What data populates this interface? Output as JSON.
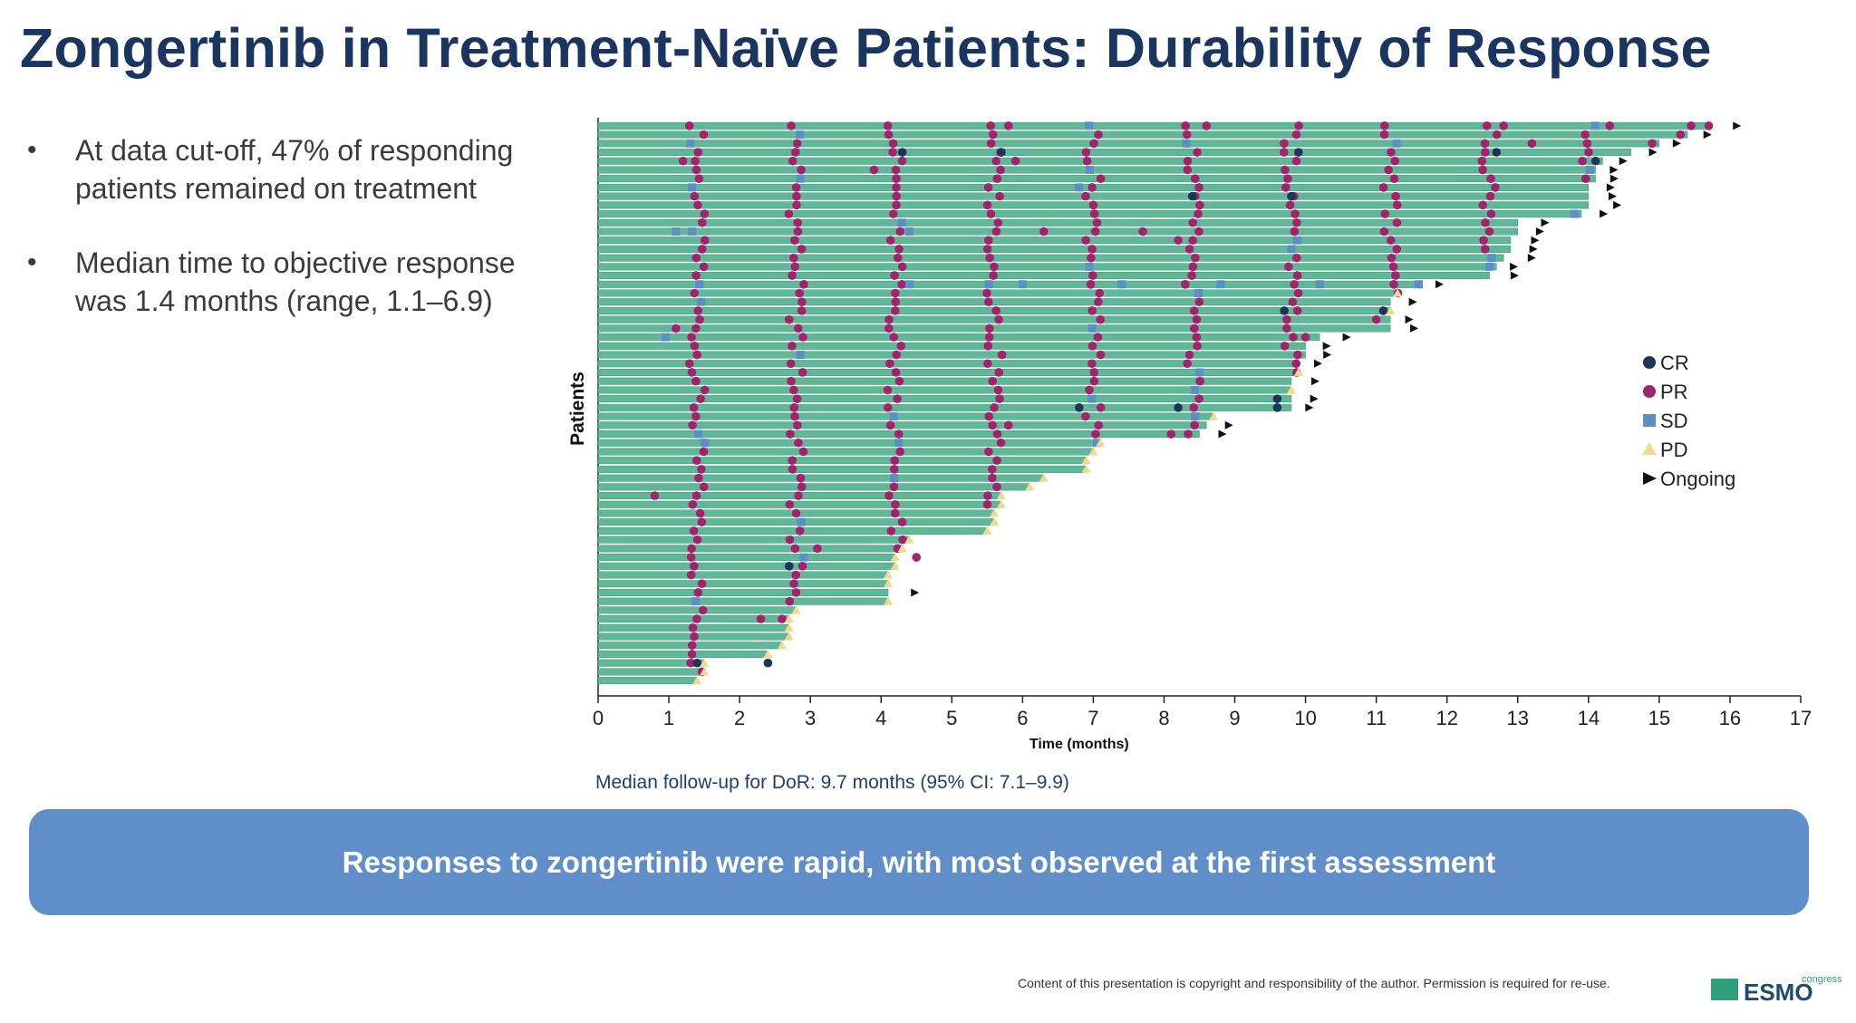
{
  "page": {
    "title": "Zongertinib in Treatment-Naïve Patients: Durability of Response",
    "bullets": [
      "At data cut-off, 47% of responding patients remained on treatment",
      "Median time to objective response was 1.4 months (range, 1.1–6.9)"
    ],
    "followup_note": "Median follow-up for DoR: 9.7 months (95% CI: 7.1–9.9)",
    "banner": "Responses to zongertinib were rapid, with most observed at the first assessment",
    "copyright": "Content of this presentation is copyright and responsibility of the author. Permission is required for re-use.",
    "logo_text": "ESMO",
    "logo_suffix": "congress"
  },
  "colors": {
    "bar": "#5fb897",
    "bar_edge": "#2e8a6a",
    "CR": "#1d3557",
    "PR": "#a3226e",
    "SD": "#5b8fc7",
    "PD": "#f3d98c",
    "ongoing": "#111111"
  },
  "chart_data": {
    "type": "swimmer",
    "xlabel": "Time (months)",
    "ylabel": "Patients",
    "xlim": [
      0,
      17
    ],
    "xticks": [
      0,
      1,
      2,
      3,
      4,
      5,
      6,
      7,
      8,
      9,
      10,
      11,
      12,
      13,
      14,
      15,
      16,
      17
    ],
    "legend": {
      "position": "right",
      "entries": [
        {
          "key": "CR",
          "label": "CR",
          "shape": "circle"
        },
        {
          "key": "PR",
          "label": "PR",
          "shape": "circle"
        },
        {
          "key": "SD",
          "label": "SD",
          "shape": "square"
        },
        {
          "key": "PD",
          "label": "PD",
          "shape": "triangle"
        },
        {
          "key": "ongoing",
          "label": "Ongoing",
          "shape": "arrow"
        }
      ]
    },
    "patients": [
      {
        "duration": 15.7,
        "ongoing": true
      },
      {
        "duration": 15.4,
        "ongoing": true
      },
      {
        "duration": 15.0,
        "ongoing": true
      },
      {
        "duration": 14.6,
        "ongoing": true
      },
      {
        "duration": 14.2,
        "ongoing": true
      },
      {
        "duration": 14.1,
        "ongoing": true
      },
      {
        "duration": 14.1,
        "ongoing": true
      },
      {
        "duration": 14.0,
        "ongoing": true
      },
      {
        "duration": 14.0,
        "ongoing": true
      },
      {
        "duration": 14.0,
        "ongoing": true
      },
      {
        "duration": 13.9,
        "ongoing": true
      },
      {
        "duration": 13.0,
        "ongoing": true
      },
      {
        "duration": 13.0,
        "ongoing": true
      },
      {
        "duration": 12.9,
        "ongoing": true
      },
      {
        "duration": 12.9,
        "ongoing": true
      },
      {
        "duration": 12.8,
        "ongoing": true
      },
      {
        "duration": 12.7,
        "ongoing": true
      },
      {
        "duration": 12.6,
        "ongoing": true
      },
      {
        "duration": 11.6,
        "ongoing": true
      },
      {
        "duration": 11.3,
        "ongoing": false
      },
      {
        "duration": 11.2,
        "ongoing": true
      },
      {
        "duration": 11.2,
        "ongoing": false
      },
      {
        "duration": 11.2,
        "ongoing": true
      },
      {
        "duration": 11.2,
        "ongoing": true
      },
      {
        "duration": 10.2,
        "ongoing": true
      },
      {
        "duration": 10.0,
        "ongoing": true
      },
      {
        "duration": 10.0,
        "ongoing": true
      },
      {
        "duration": 9.9,
        "ongoing": true
      },
      {
        "duration": 9.9,
        "ongoing": false
      },
      {
        "duration": 9.8,
        "ongoing": true
      },
      {
        "duration": 9.8,
        "ongoing": false
      },
      {
        "duration": 9.8,
        "ongoing": true
      },
      {
        "duration": 9.8,
        "ongoing": true
      },
      {
        "duration": 8.7,
        "ongoing": false
      },
      {
        "duration": 8.6,
        "ongoing": true
      },
      {
        "duration": 8.5,
        "ongoing": true
      },
      {
        "duration": 7.1,
        "ongoing": false
      },
      {
        "duration": 7.0,
        "ongoing": false
      },
      {
        "duration": 6.9,
        "ongoing": false
      },
      {
        "duration": 6.9,
        "ongoing": false
      },
      {
        "duration": 6.3,
        "ongoing": false
      },
      {
        "duration": 6.1,
        "ongoing": false
      },
      {
        "duration": 5.7,
        "ongoing": false
      },
      {
        "duration": 5.7,
        "ongoing": false
      },
      {
        "duration": 5.6,
        "ongoing": false
      },
      {
        "duration": 5.6,
        "ongoing": false
      },
      {
        "duration": 5.5,
        "ongoing": false
      },
      {
        "duration": 4.4,
        "ongoing": false
      },
      {
        "duration": 4.3,
        "ongoing": false
      },
      {
        "duration": 4.2,
        "ongoing": false
      },
      {
        "duration": 4.2,
        "ongoing": false
      },
      {
        "duration": 4.1,
        "ongoing": false
      },
      {
        "duration": 4.1,
        "ongoing": false
      },
      {
        "duration": 4.1,
        "ongoing": true
      },
      {
        "duration": 4.1,
        "ongoing": false
      },
      {
        "duration": 2.8,
        "ongoing": false
      },
      {
        "duration": 2.7,
        "ongoing": false
      },
      {
        "duration": 2.7,
        "ongoing": false
      },
      {
        "duration": 2.7,
        "ongoing": false
      },
      {
        "duration": 2.6,
        "ongoing": false
      },
      {
        "duration": 2.4,
        "ongoing": false
      },
      {
        "duration": 1.5,
        "ongoing": false
      },
      {
        "duration": 1.5,
        "ongoing": false
      },
      {
        "duration": 1.4,
        "ongoing": false
      }
    ],
    "assessment_schedule": [
      1.4,
      2.8,
      4.2,
      5.6,
      7.0,
      8.4,
      9.8,
      11.2,
      12.6,
      14.0,
      15.4
    ],
    "special_markers": [
      {
        "patient": 0,
        "time": 5.8,
        "type": "PR"
      },
      {
        "patient": 0,
        "time": 8.6,
        "type": "PR"
      },
      {
        "patient": 0,
        "time": 12.8,
        "type": "PR"
      },
      {
        "patient": 0,
        "time": 14.3,
        "type": "PR"
      },
      {
        "patient": 0,
        "time": 15.7,
        "type": "PR"
      },
      {
        "patient": 1,
        "time": 15.3,
        "type": "PR"
      },
      {
        "patient": 2,
        "time": 14.9,
        "type": "PR"
      },
      {
        "patient": 2,
        "time": 13.2,
        "type": "PR"
      },
      {
        "patient": 3,
        "time": 4.3,
        "type": "CR"
      },
      {
        "patient": 3,
        "time": 5.7,
        "type": "CR"
      },
      {
        "patient": 3,
        "time": 9.9,
        "type": "CR"
      },
      {
        "patient": 3,
        "time": 12.7,
        "type": "CR"
      },
      {
        "patient": 4,
        "time": 14.1,
        "type": "CR"
      },
      {
        "patient": 4,
        "time": 5.9,
        "type": "PR"
      },
      {
        "patient": 4,
        "time": 1.2,
        "type": "PR"
      },
      {
        "patient": 5,
        "time": 3.9,
        "type": "PR"
      },
      {
        "patient": 7,
        "time": 6.8,
        "type": "SD"
      },
      {
        "patient": 8,
        "time": 8.4,
        "type": "CR"
      },
      {
        "patient": 8,
        "time": 9.8,
        "type": "CR"
      },
      {
        "patient": 10,
        "time": 13.8,
        "type": "SD"
      },
      {
        "patient": 12,
        "time": 1.1,
        "type": "SD"
      },
      {
        "patient": 12,
        "time": 4.4,
        "type": "SD"
      },
      {
        "patient": 12,
        "time": 6.3,
        "type": "PR"
      },
      {
        "patient": 12,
        "time": 7.7,
        "type": "PR"
      },
      {
        "patient": 13,
        "time": 8.2,
        "type": "PR"
      },
      {
        "patient": 18,
        "time": 4.4,
        "type": "SD"
      },
      {
        "patient": 18,
        "time": 6.0,
        "type": "SD"
      },
      {
        "patient": 18,
        "time": 7.4,
        "type": "SD"
      },
      {
        "patient": 18,
        "time": 8.8,
        "type": "SD"
      },
      {
        "patient": 18,
        "time": 10.2,
        "type": "SD"
      },
      {
        "patient": 18,
        "time": 11.6,
        "type": "SD"
      },
      {
        "patient": 21,
        "time": 9.7,
        "type": "CR"
      },
      {
        "patient": 21,
        "time": 11.1,
        "type": "CR"
      },
      {
        "patient": 22,
        "time": 11.0,
        "type": "PR"
      },
      {
        "patient": 23,
        "time": 1.1,
        "type": "PR"
      },
      {
        "patient": 24,
        "time": 0.95,
        "type": "SD"
      },
      {
        "patient": 24,
        "time": 10.0,
        "type": "PR"
      },
      {
        "patient": 31,
        "time": 9.6,
        "type": "CR"
      },
      {
        "patient": 32,
        "time": 9.6,
        "type": "CR"
      },
      {
        "patient": 32,
        "time": 6.8,
        "type": "CR"
      },
      {
        "patient": 32,
        "time": 8.2,
        "type": "CR"
      },
      {
        "patient": 34,
        "time": 5.8,
        "type": "PR"
      },
      {
        "patient": 35,
        "time": 8.1,
        "type": "PR"
      },
      {
        "patient": 42,
        "time": 0.8,
        "type": "PR"
      },
      {
        "patient": 48,
        "time": 3.1,
        "type": "PR"
      },
      {
        "patient": 49,
        "time": 4.5,
        "type": "PR"
      },
      {
        "patient": 50,
        "time": 2.7,
        "type": "CR"
      },
      {
        "patient": 56,
        "time": 2.3,
        "type": "PR"
      },
      {
        "patient": 56,
        "time": 2.6,
        "type": "PR"
      },
      {
        "patient": 61,
        "time": 2.4,
        "type": "CR"
      },
      {
        "patient": 61,
        "time": 1.4,
        "type": "CR"
      }
    ]
  }
}
